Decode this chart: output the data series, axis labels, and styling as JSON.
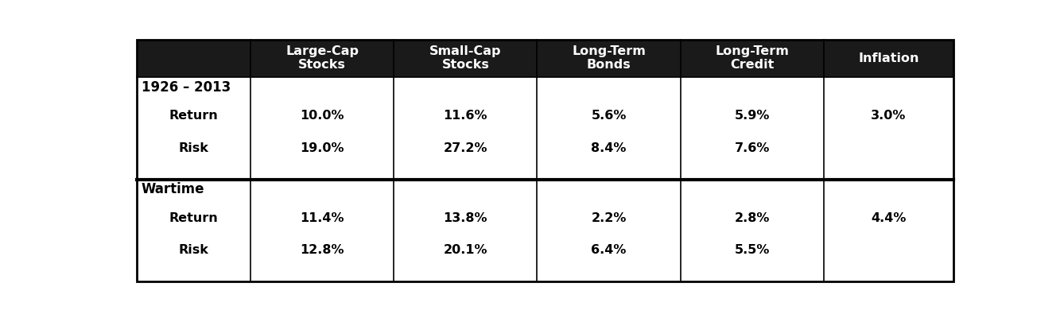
{
  "header_bg": "#1a1a1a",
  "header_text_color": "#ffffff",
  "body_bg": "#ffffff",
  "body_text_color": "#000000",
  "border_color": "#000000",
  "col_headers": [
    "Large-Cap\nStocks",
    "Small-Cap\nStocks",
    "Long-Term\nBonds",
    "Long-Term\nCredit",
    "Inflation"
  ],
  "section1_label": "1926 – 2013",
  "section1_rows": [
    [
      "Return",
      "10.0%",
      "11.6%",
      "5.6%",
      "5.9%",
      "3.0%"
    ],
    [
      "Risk",
      "19.0%",
      "27.2%",
      "8.4%",
      "7.6%",
      ""
    ]
  ],
  "section2_label": "Wartime",
  "section2_rows": [
    [
      "Return",
      "11.4%",
      "13.8%",
      "2.2%",
      "2.8%",
      "4.4%"
    ],
    [
      "Risk",
      "12.8%",
      "20.1%",
      "6.4%",
      "5.5%",
      ""
    ]
  ],
  "header_fontsize": 11.5,
  "body_fontsize": 11.5,
  "section_label_fontsize": 12
}
